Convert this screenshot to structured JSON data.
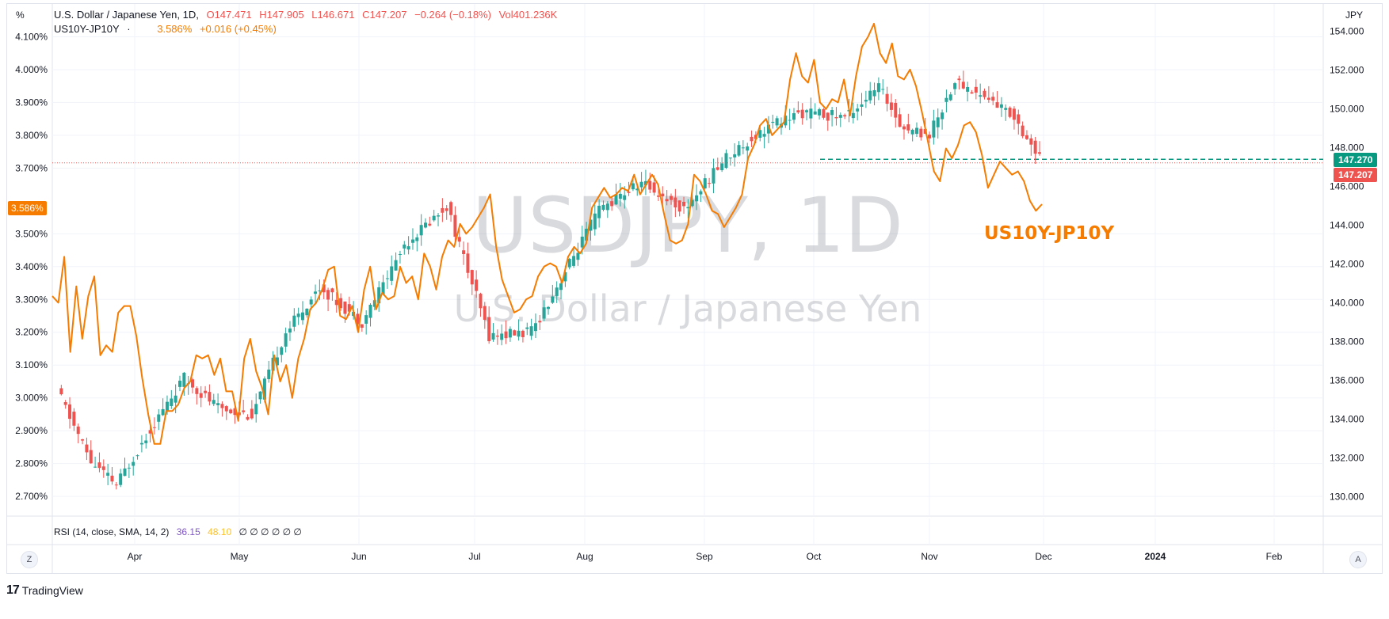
{
  "legend": {
    "symbol": "U.S. Dollar / Japanese Yen, 1D,",
    "open": "O147.471",
    "high": "H147.905",
    "low": "L146.671",
    "close": "C147.207",
    "change": "−0.264 (−0.18%)",
    "volume": "Vol401.236K",
    "overlay_name": "US10Y-JP10Y",
    "overlay_value": "3.586%",
    "overlay_change": "+0.016 (+0.45%)"
  },
  "corners": {
    "left_unit": "%",
    "right_unit": "JPY",
    "zoom_button": "Z",
    "auto_button": "A"
  },
  "watermark": {
    "line1": "USDJPY, 1D",
    "line2": "U.S. Dollar / Japanese Yen"
  },
  "overlay_label": "US10Y-JP10Y",
  "rsi": {
    "label": "RSI (14, close, SMA, 14, 2)",
    "rsi_value": "36.15",
    "sma_value": "48.10",
    "placeholders": "∅ ∅ ∅ ∅ ∅ ∅"
  },
  "price_tags": {
    "green": "147.270",
    "red": "147.207",
    "left": "3.586%"
  },
  "footer": {
    "brand": "TradingView"
  },
  "colors": {
    "up": "#26a69a",
    "down": "#ef5350",
    "overlay": "#f57c00",
    "grid": "#f0f3fa",
    "watermark": "rgba(120,123,134,0.28)"
  },
  "chart_data": {
    "type": "line",
    "title": "U.S. Dollar / Japanese Yen, 1D,",
    "left_axis": {
      "label": "%",
      "ticks": [
        "2.700%",
        "2.800%",
        "2.900%",
        "3.000%",
        "3.100%",
        "3.200%",
        "3.300%",
        "3.400%",
        "3.500%",
        "3.700%",
        "3.800%",
        "3.900%",
        "4.000%",
        "4.100%"
      ],
      "range": [
        2.64,
        4.2
      ]
    },
    "right_axis": {
      "label": "JPY",
      "ticks": [
        "130.000",
        "132.000",
        "134.000",
        "136.000",
        "138.000",
        "140.000",
        "142.000",
        "144.000",
        "146.000",
        "148.000",
        "150.000",
        "152.000",
        "154.000"
      ],
      "range": [
        129.0,
        155.4
      ]
    },
    "x_axis": {
      "labels": [
        "Apr",
        "May",
        "Jun",
        "Jul",
        "Aug",
        "Sep",
        "Oct",
        "Nov",
        "Dec",
        "2024",
        "Feb"
      ]
    },
    "series": [
      {
        "name": "US10Y-JP10Y",
        "axis": "left",
        "values": [
          3.31,
          3.29,
          3.43,
          3.14,
          3.34,
          3.18,
          3.31,
          3.37,
          3.13,
          3.16,
          3.14,
          3.26,
          3.28,
          3.28,
          3.19,
          3.06,
          2.95,
          2.86,
          2.86,
          2.96,
          2.96,
          2.98,
          3.03,
          3.05,
          3.13,
          3.12,
          3.13,
          3.07,
          3.12,
          3.02,
          3.02,
          2.93,
          3.12,
          3.18,
          3.08,
          3.03,
          2.95,
          3.13,
          3.05,
          3.1,
          3.0,
          3.12,
          3.18,
          3.27,
          3.29,
          3.33,
          3.39,
          3.4,
          3.25,
          3.24,
          3.28,
          3.2,
          3.33,
          3.4,
          3.27,
          3.32,
          3.3,
          3.31,
          3.4,
          3.35,
          3.37,
          3.3,
          3.44,
          3.4,
          3.33,
          3.43,
          3.48,
          3.46,
          3.53,
          3.5,
          3.52,
          3.55,
          3.58,
          3.62,
          3.46,
          3.36,
          3.31,
          3.26,
          3.27,
          3.3,
          3.31,
          3.37,
          3.4,
          3.41,
          3.4,
          3.35,
          3.43,
          3.46,
          3.44,
          3.47,
          3.58,
          3.61,
          3.64,
          3.61,
          3.62,
          3.64,
          3.63,
          3.68,
          3.62,
          3.65,
          3.68,
          3.65,
          3.56,
          3.48,
          3.47,
          3.48,
          3.53,
          3.68,
          3.66,
          3.62,
          3.57,
          3.56,
          3.52,
          3.55,
          3.58,
          3.62,
          3.73,
          3.77,
          3.83,
          3.85,
          3.8,
          3.82,
          3.84,
          3.97,
          4.05,
          3.98,
          3.96,
          4.03,
          3.9,
          3.88,
          3.91,
          3.9,
          3.97,
          3.86,
          3.98,
          4.07,
          4.1,
          4.14,
          4.05,
          4.02,
          4.08,
          3.98,
          3.97,
          4.0,
          3.95,
          3.87,
          3.78,
          3.69,
          3.66,
          3.76,
          3.73,
          3.77,
          3.83,
          3.84,
          3.81,
          3.74,
          3.64,
          3.68,
          3.72,
          3.7,
          3.68,
          3.69,
          3.66,
          3.6,
          3.57,
          3.59
        ]
      }
    ]
  }
}
